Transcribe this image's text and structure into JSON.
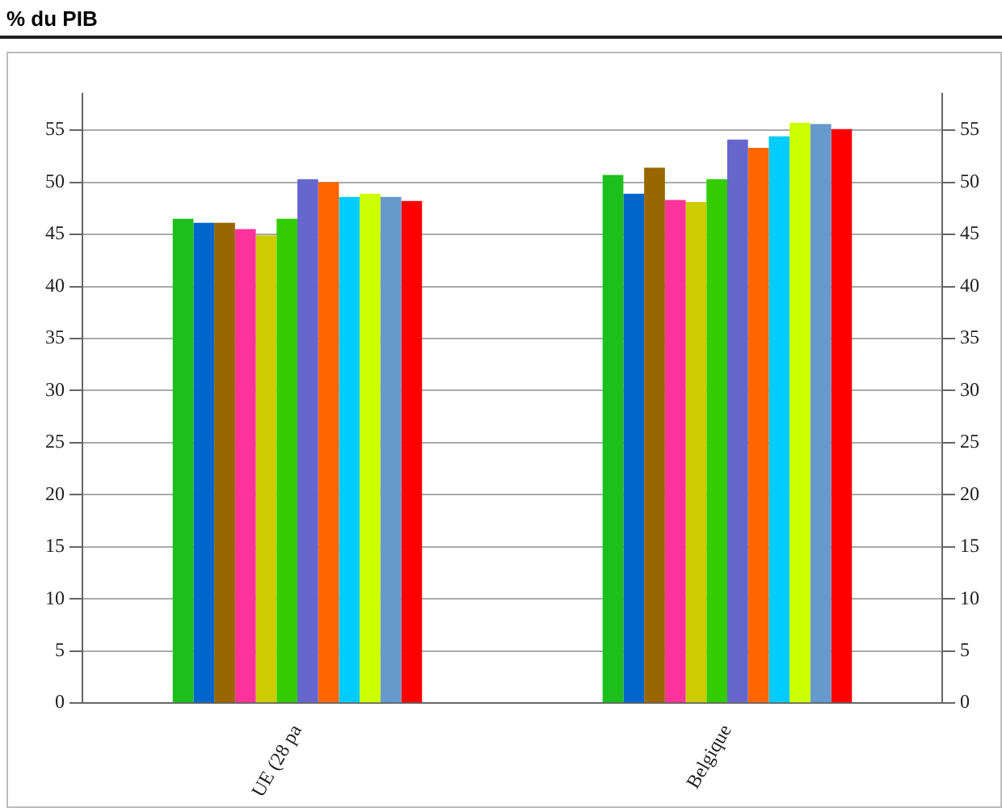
{
  "chart_data": {
    "type": "bar",
    "title": "% du PIB",
    "categories": [
      "UE (28 pa",
      "Belgique"
    ],
    "series": [
      {
        "color": "#1dbf1d",
        "values": [
          46.5,
          50.7
        ]
      },
      {
        "color": "#0066cc",
        "values": [
          46.1,
          48.9
        ]
      },
      {
        "color": "#996600",
        "values": [
          46.1,
          51.4
        ]
      },
      {
        "color": "#ff3399",
        "values": [
          45.5,
          48.3
        ]
      },
      {
        "color": "#cccc00",
        "values": [
          44.9,
          48.1
        ]
      },
      {
        "color": "#33cc00",
        "values": [
          46.5,
          50.3
        ]
      },
      {
        "color": "#6666cc",
        "values": [
          50.3,
          54.1
        ]
      },
      {
        "color": "#ff6600",
        "values": [
          50.0,
          53.3
        ]
      },
      {
        "color": "#00ccff",
        "values": [
          48.6,
          54.4
        ]
      },
      {
        "color": "#ccff00",
        "values": [
          48.9,
          55.7
        ]
      },
      {
        "color": "#6699cc",
        "values": [
          48.6,
          55.6
        ]
      },
      {
        "color": "#ff0000",
        "values": [
          48.2,
          55.1
        ]
      }
    ],
    "ylim": [
      0,
      58.5
    ],
    "yticks": [
      0,
      5,
      10,
      15,
      20,
      25,
      30,
      35,
      40,
      45,
      50,
      55
    ],
    "y2lim": [
      0,
      58.5
    ],
    "y2ticks": [
      0,
      5,
      10,
      15,
      20,
      25,
      30,
      35,
      40,
      45,
      50,
      55
    ],
    "grid": "y",
    "legend": false
  }
}
